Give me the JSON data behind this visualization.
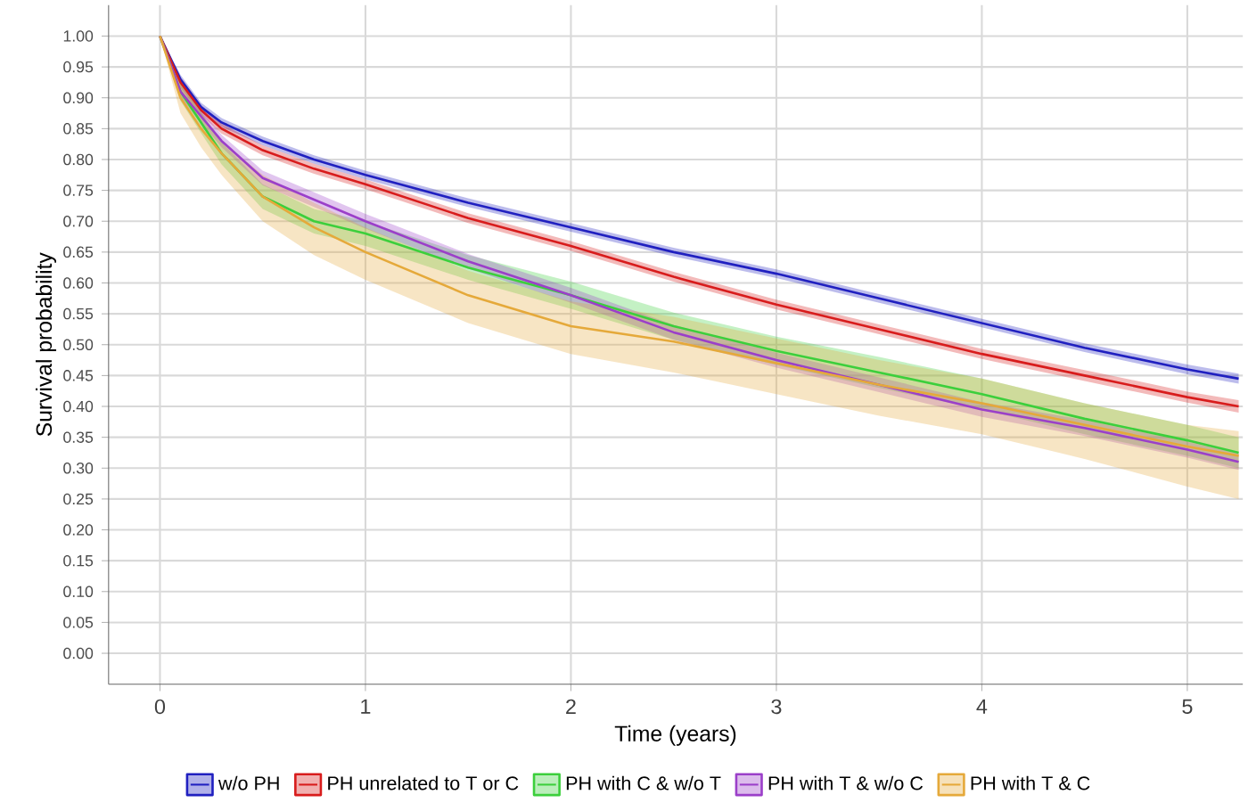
{
  "chart_data": {
    "type": "line",
    "xlabel": "Time (years)",
    "ylabel": "Survival probability",
    "xlim": [
      -0.25,
      5.27
    ],
    "ylim": [
      -0.05,
      1.05
    ],
    "xticks": [
      0,
      1,
      2,
      3,
      4,
      5
    ],
    "yticks": [
      {
        "value": 0,
        "label": "0.00"
      },
      {
        "value": 0.05,
        "label": "0.05"
      },
      {
        "value": 0.1,
        "label": "0.10"
      },
      {
        "value": 0.15,
        "label": "0.15"
      },
      {
        "value": 0.2,
        "label": "0.20"
      },
      {
        "value": 0.25,
        "label": "0.25"
      },
      {
        "value": 0.3,
        "label": "0.30"
      },
      {
        "value": 0.35,
        "label": "0.35"
      },
      {
        "value": 0.4,
        "label": "0.40"
      },
      {
        "value": 0.45,
        "label": "0.45"
      },
      {
        "value": 0.5,
        "label": "0.50"
      },
      {
        "value": 0.55,
        "label": "0.55"
      },
      {
        "value": 0.6,
        "label": "0.60"
      },
      {
        "value": 0.65,
        "label": "0.65"
      },
      {
        "value": 0.7,
        "label": "0.70"
      },
      {
        "value": 0.75,
        "label": "0.75"
      },
      {
        "value": 0.8,
        "label": "0.80"
      },
      {
        "value": 0.85,
        "label": "0.85"
      },
      {
        "value": 0.9,
        "label": "0.90"
      },
      {
        "value": 0.95,
        "label": "0.95"
      },
      {
        "value": 1,
        "label": "1.00"
      }
    ],
    "grid": true,
    "legend": "bottom",
    "marker": "none",
    "line_style": "solid",
    "x": [
      0,
      0.1,
      0.2,
      0.3,
      0.5,
      0.75,
      1,
      1.5,
      2,
      2.5,
      3,
      3.5,
      4,
      4.5,
      5,
      5.25
    ],
    "series": [
      {
        "name": "w/o PH",
        "color": "#2020c0",
        "values": [
          1,
          0.93,
          0.885,
          0.86,
          0.83,
          0.8,
          0.775,
          0.73,
          0.69,
          0.65,
          0.615,
          0.575,
          0.535,
          0.495,
          0.46,
          0.445
        ],
        "lower": [
          1,
          0.923,
          0.878,
          0.853,
          0.823,
          0.793,
          0.768,
          0.723,
          0.683,
          0.643,
          0.608,
          0.568,
          0.528,
          0.488,
          0.452,
          0.437
        ],
        "upper": [
          1,
          0.937,
          0.892,
          0.867,
          0.837,
          0.807,
          0.782,
          0.737,
          0.697,
          0.657,
          0.622,
          0.582,
          0.542,
          0.502,
          0.468,
          0.453
        ]
      },
      {
        "name": "PH unrelated to T or C",
        "color": "#d81c1c",
        "values": [
          1,
          0.925,
          0.88,
          0.85,
          0.815,
          0.785,
          0.76,
          0.705,
          0.66,
          0.61,
          0.565,
          0.525,
          0.485,
          0.45,
          0.415,
          0.4
        ],
        "lower": [
          1,
          0.917,
          0.872,
          0.842,
          0.807,
          0.777,
          0.752,
          0.697,
          0.652,
          0.602,
          0.557,
          0.517,
          0.477,
          0.441,
          0.406,
          0.39
        ],
        "upper": [
          1,
          0.933,
          0.888,
          0.858,
          0.823,
          0.793,
          0.768,
          0.713,
          0.668,
          0.618,
          0.573,
          0.533,
          0.493,
          0.459,
          0.424,
          0.41
        ]
      },
      {
        "name": "PH with C & w/o T",
        "color": "#3ccf3c",
        "values": [
          1,
          0.91,
          0.86,
          0.81,
          0.74,
          0.7,
          0.68,
          0.625,
          0.58,
          0.53,
          0.49,
          0.455,
          0.42,
          0.38,
          0.345,
          0.325
        ],
        "lower": [
          1,
          0.895,
          0.843,
          0.792,
          0.72,
          0.68,
          0.66,
          0.605,
          0.558,
          0.508,
          0.467,
          0.43,
          0.395,
          0.355,
          0.32,
          0.3
        ],
        "upper": [
          1,
          0.925,
          0.877,
          0.828,
          0.76,
          0.72,
          0.7,
          0.645,
          0.602,
          0.552,
          0.513,
          0.48,
          0.445,
          0.405,
          0.37,
          0.35
        ]
      },
      {
        "name": "PH with T & w/o C",
        "color": "#9b3fc9",
        "values": [
          1,
          0.91,
          0.87,
          0.83,
          0.77,
          0.735,
          0.7,
          0.635,
          0.58,
          0.52,
          0.475,
          0.435,
          0.395,
          0.365,
          0.33,
          0.31
        ],
        "lower": [
          1,
          0.9,
          0.86,
          0.82,
          0.758,
          0.723,
          0.688,
          0.623,
          0.568,
          0.508,
          0.463,
          0.423,
          0.383,
          0.352,
          0.317,
          0.297
        ],
        "upper": [
          1,
          0.92,
          0.88,
          0.84,
          0.782,
          0.747,
          0.712,
          0.647,
          0.592,
          0.532,
          0.487,
          0.447,
          0.407,
          0.378,
          0.343,
          0.323
        ]
      },
      {
        "name": "PH with T & C",
        "color": "#e5a93a",
        "values": [
          1,
          0.9,
          0.85,
          0.81,
          0.74,
          0.69,
          0.65,
          0.58,
          0.53,
          0.505,
          0.47,
          0.435,
          0.405,
          0.37,
          0.335,
          0.32
        ],
        "lower": [
          1,
          0.875,
          0.82,
          0.775,
          0.7,
          0.645,
          0.605,
          0.535,
          0.485,
          0.455,
          0.42,
          0.385,
          0.355,
          0.315,
          0.27,
          0.25
        ],
        "upper": [
          1,
          0.925,
          0.875,
          0.83,
          0.775,
          0.73,
          0.69,
          0.62,
          0.57,
          0.545,
          0.51,
          0.475,
          0.445,
          0.405,
          0.37,
          0.36
        ]
      }
    ]
  }
}
